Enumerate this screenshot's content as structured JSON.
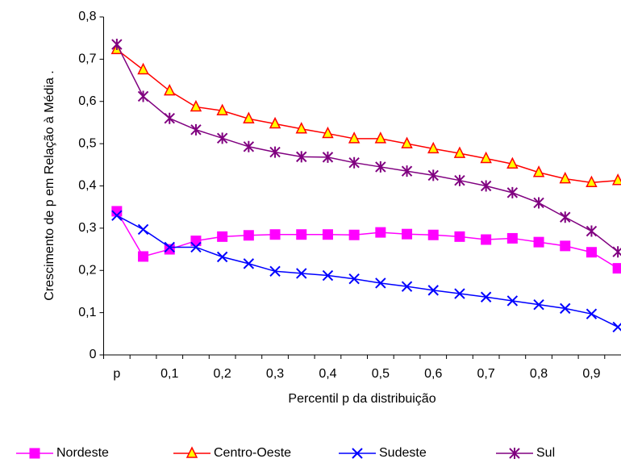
{
  "chart_data": {
    "type": "line",
    "y_label": "Crescimento de p em Relação à Média .",
    "x_label": "Percentil p da distribuição",
    "categories": [
      "p",
      null,
      "0,1",
      null,
      "0,2",
      null,
      "0,3",
      null,
      "0,4",
      null,
      "0,5",
      null,
      "0,6",
      null,
      "0,7",
      null,
      "0,8",
      null,
      "0,9",
      null
    ],
    "ylim": [
      0,
      0.8
    ],
    "yticks": [
      0,
      {
        "value": 0.1,
        "label": "0,1"
      },
      {
        "value": 0.2,
        "label": "0,2"
      },
      {
        "value": 0.3,
        "label": "0,3"
      },
      {
        "value": 0.4,
        "label": "0,4"
      },
      {
        "value": 0.5,
        "label": "0,5"
      },
      {
        "value": 0.6,
        "label": "0,6"
      },
      {
        "value": 0.7,
        "label": "0,7"
      },
      {
        "value": 0.8,
        "label": "0,8"
      }
    ],
    "grid": false,
    "legend": "bottom",
    "series": [
      {
        "name": "Nordeste",
        "color": "#ff00ff",
        "marker": "square",
        "values": [
          0.34,
          0.233,
          0.25,
          0.27,
          0.28,
          0.283,
          0.285,
          0.285,
          0.285,
          0.284,
          0.29,
          0.286,
          0.284,
          0.28,
          0.273,
          0.276,
          0.267,
          0.258,
          0.243,
          0.205
        ]
      },
      {
        "name": "Centro-Oeste",
        "color": "#ff0000",
        "marker": "triangle",
        "values": [
          0.723,
          0.675,
          0.625,
          0.587,
          0.578,
          0.559,
          0.547,
          0.535,
          0.524,
          0.512,
          0.512,
          0.5,
          0.488,
          0.477,
          0.465,
          0.452,
          0.432,
          0.417,
          0.408,
          0.413
        ]
      },
      {
        "name": "Sudeste",
        "color": "#0000ff",
        "marker": "x",
        "values": [
          0.33,
          0.297,
          0.255,
          0.255,
          0.232,
          0.216,
          0.198,
          0.193,
          0.188,
          0.18,
          0.17,
          0.162,
          0.153,
          0.145,
          0.137,
          0.128,
          0.119,
          0.11,
          0.097,
          0.066
        ]
      },
      {
        "name": "Sul",
        "color": "#800080",
        "marker": "star",
        "values": [
          0.735,
          0.612,
          0.56,
          0.533,
          0.513,
          0.493,
          0.48,
          0.469,
          0.468,
          0.455,
          0.445,
          0.435,
          0.425,
          0.413,
          0.4,
          0.384,
          0.36,
          0.326,
          0.293,
          0.244
        ]
      }
    ]
  }
}
